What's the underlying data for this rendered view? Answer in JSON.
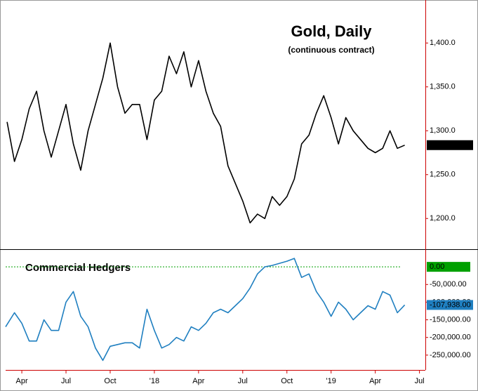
{
  "chart_data": [
    {
      "type": "line",
      "title": "Gold, Daily",
      "subtitle": "(continuous contract)",
      "color": "#000000",
      "xlim": [
        1.9,
        30.4
      ],
      "ylim": [
        1165,
        1445
      ],
      "yticks": [
        {
          "value": 1200,
          "label": "1,200.0"
        },
        {
          "value": 1250,
          "label": "1,250.0"
        },
        {
          "value": 1300,
          "label": "1,300.0"
        },
        {
          "value": 1350,
          "label": "1,350.0"
        },
        {
          "value": 1400,
          "label": "1,400.0"
        }
      ],
      "x": [
        2.0,
        2.5,
        3.0,
        3.5,
        4.0,
        4.5,
        5.0,
        5.5,
        6.0,
        6.5,
        7.0,
        7.5,
        8.0,
        8.5,
        9.0,
        9.5,
        10.0,
        10.5,
        11.0,
        11.5,
        12.0,
        12.5,
        13.0,
        13.5,
        14.0,
        14.5,
        15.0,
        15.5,
        16.0,
        16.5,
        17.0,
        17.5,
        18.0,
        18.5,
        19.0,
        19.5,
        20.0,
        20.5,
        21.0,
        21.5,
        22.0,
        22.5,
        23.0,
        23.5,
        24.0,
        24.5,
        25.0,
        25.5,
        26.0,
        26.5,
        27.0,
        27.5,
        28.0,
        28.5,
        29.0
      ],
      "values": [
        1310,
        1265,
        1290,
        1325,
        1345,
        1300,
        1270,
        1300,
        1330,
        1285,
        1255,
        1300,
        1330,
        1360,
        1400,
        1350,
        1320,
        1330,
        1330,
        1290,
        1335,
        1345,
        1385,
        1365,
        1390,
        1350,
        1380,
        1345,
        1320,
        1305,
        1260,
        1240,
        1220,
        1195,
        1205,
        1200,
        1225,
        1215,
        1225,
        1245,
        1285,
        1295,
        1320,
        1340,
        1315,
        1285,
        1315,
        1300,
        1290,
        1280,
        1275,
        1280,
        1300,
        1280,
        1283.6
      ],
      "marker": {
        "value": 1283.6,
        "label": "1,283.6",
        "color": "#000000"
      }
    },
    {
      "type": "line",
      "annotation": "Commercial Hedgers",
      "color": "#1f7fc0",
      "xlim": [
        1.9,
        30.4
      ],
      "ylim": [
        -292000,
        46000
      ],
      "xticks": [
        {
          "value": 3,
          "label": "Apr"
        },
        {
          "value": 6,
          "label": "Jul"
        },
        {
          "value": 9,
          "label": "Oct"
        },
        {
          "value": 12,
          "label": "'18"
        },
        {
          "value": 15,
          "label": "Apr"
        },
        {
          "value": 18,
          "label": "Jul"
        },
        {
          "value": 21,
          "label": "Oct"
        },
        {
          "value": 24,
          "label": "'19"
        },
        {
          "value": 27,
          "label": "Apr"
        },
        {
          "value": 30,
          "label": "Jul"
        }
      ],
      "yticks": [
        {
          "value": -250000,
          "label": "-250,000.00"
        },
        {
          "value": -200000,
          "label": "-200,000.00"
        },
        {
          "value": -150000,
          "label": "-150,000.00"
        },
        {
          "value": -100000,
          "label": "-100,000.00"
        },
        {
          "value": -50000,
          "label": "-50,000.00"
        }
      ],
      "x": [
        1.9,
        2.5,
        3.0,
        3.5,
        4.0,
        4.5,
        5.0,
        5.5,
        6.0,
        6.5,
        7.0,
        7.5,
        8.0,
        8.5,
        9.0,
        9.5,
        10.0,
        10.5,
        11.0,
        11.5,
        12.0,
        12.5,
        13.0,
        13.5,
        14.0,
        14.5,
        15.0,
        15.5,
        16.0,
        16.5,
        17.0,
        17.5,
        18.0,
        18.5,
        19.0,
        19.5,
        20.0,
        20.5,
        21.0,
        21.5,
        22.0,
        22.5,
        23.0,
        23.5,
        24.0,
        24.5,
        25.0,
        25.5,
        26.0,
        26.5,
        27.0,
        27.5,
        28.0,
        28.5,
        29.0
      ],
      "values": [
        -170000,
        -130000,
        -160000,
        -210000,
        -210000,
        -150000,
        -180000,
        -180000,
        -100000,
        -70000,
        -140000,
        -170000,
        -230000,
        -265000,
        -225000,
        -220000,
        -215000,
        -215000,
        -230000,
        -120000,
        -180000,
        -230000,
        -220000,
        -200000,
        -210000,
        -170000,
        -180000,
        -160000,
        -130000,
        -120000,
        -130000,
        -110000,
        -90000,
        -60000,
        -20000,
        0,
        4000,
        10000,
        16000,
        24000,
        -30000,
        -20000,
        -70000,
        -100000,
        -140000,
        -100000,
        -120000,
        -150000,
        -130000,
        -110000,
        -120000,
        -70000,
        -80000,
        -130000,
        -107938
      ],
      "reference": {
        "value": 0,
        "label": "0.00",
        "color": "#00a000"
      },
      "marker": {
        "value": -107938,
        "label": "-107,938.00",
        "color": "#1f7fc0"
      }
    }
  ]
}
